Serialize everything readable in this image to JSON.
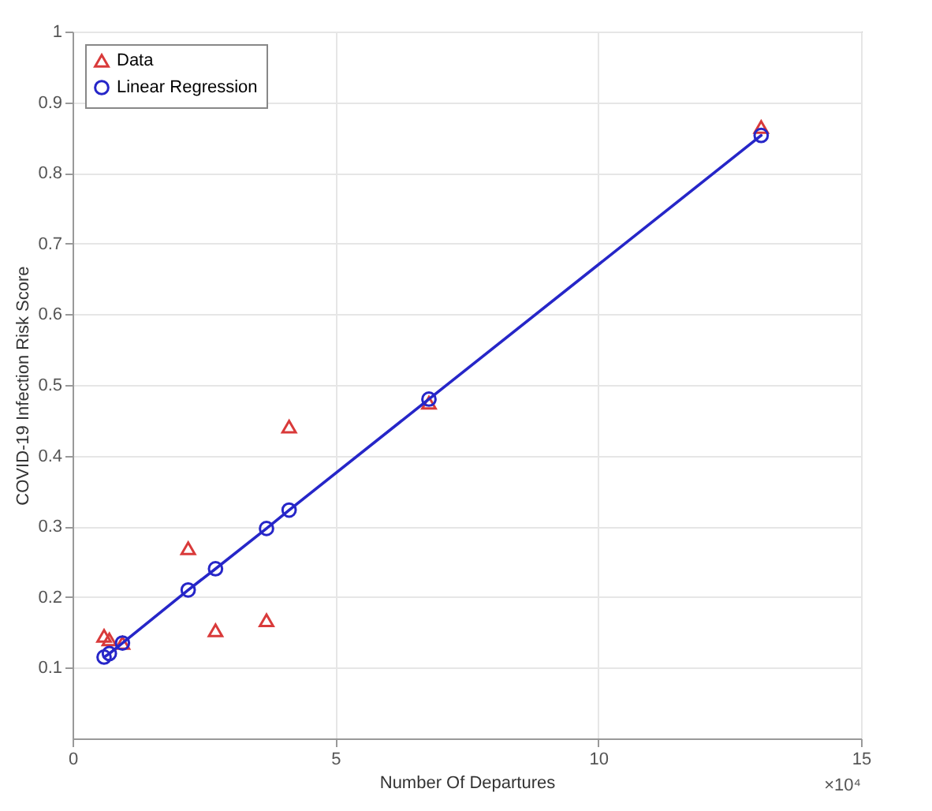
{
  "chart_data": {
    "type": "scatter",
    "xlabel": "Number Of Departures",
    "ylabel": "COVID-19 Infection Risk Score",
    "x": [
      0.6,
      0.7,
      0.95,
      2.2,
      2.72,
      3.69,
      4.12,
      6.78,
      13.1
    ],
    "series": [
      {
        "name": "Data",
        "marker": "triangle",
        "color": "#d93a3a",
        "values": [
          0.145,
          0.14,
          0.135,
          0.269,
          0.153,
          0.167,
          0.441,
          0.475,
          0.865
        ]
      },
      {
        "name": "Linear Regression",
        "type": "line",
        "marker": "circle",
        "color": "#2626c8",
        "values": [
          0.115,
          0.12,
          0.135,
          0.21,
          0.24,
          0.297,
          0.323,
          0.48,
          0.853
        ]
      }
    ],
    "xlim": [
      0,
      15
    ],
    "xticks": [
      0,
      5,
      10,
      15
    ],
    "ylim": [
      0,
      1
    ],
    "yticks": [
      0.1,
      0.2,
      0.3,
      0.4,
      0.5,
      0.6,
      0.7,
      0.8,
      0.9,
      1
    ],
    "grid": true,
    "legend": "top left",
    "annotations": [
      "×10⁴"
    ]
  }
}
